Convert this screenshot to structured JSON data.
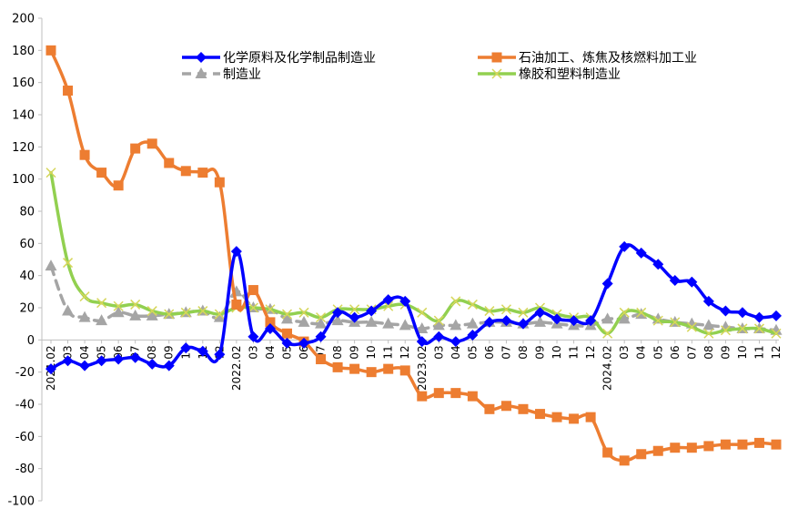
{
  "chart_data": {
    "type": "line",
    "title": "",
    "xlabel": "",
    "ylabel": "",
    "ylim": [
      -100,
      200
    ],
    "yticks": [
      200,
      180,
      160,
      140,
      120,
      100,
      80,
      60,
      40,
      20,
      0,
      -20,
      -40,
      -60,
      -80,
      -100
    ],
    "grid": false,
    "legend_position": "top",
    "categories": [
      "2021.02",
      "03",
      "04",
      "05",
      "06",
      "07",
      "08",
      "09",
      "10",
      "11",
      "12",
      "2022.02",
      "03",
      "04",
      "05",
      "06",
      "07",
      "08",
      "09",
      "10",
      "11",
      "12",
      "2023.02",
      "03",
      "04",
      "05",
      "06",
      "07",
      "08",
      "09",
      "10",
      "11",
      "12",
      "2024.02",
      "03",
      "04",
      "05",
      "06",
      "07",
      "08",
      "09",
      "10",
      "11",
      "12"
    ],
    "series": [
      {
        "name": "化学原料及化学制品制造业",
        "color": "#0000ff",
        "marker": "diamond",
        "dash": "solid",
        "values": [
          -18,
          -13,
          -16,
          -13,
          -12,
          -11,
          -15,
          -16,
          -5,
          -7,
          -9,
          55,
          2,
          7,
          -2,
          -2,
          2,
          17,
          14,
          18,
          25,
          24,
          -1,
          2,
          -1,
          3,
          11,
          12,
          10,
          17,
          13,
          12,
          12,
          35,
          58,
          54,
          47,
          37,
          36,
          24,
          18,
          17,
          14,
          15
        ]
      },
      {
        "name": "石油加工、炼焦及核燃料加工业",
        "color": "#ed7d31",
        "marker": "square",
        "dash": "solid",
        "values": [
          180,
          155,
          115,
          104,
          96,
          119,
          122,
          110,
          105,
          104,
          98,
          22,
          31,
          11,
          4,
          -1,
          -12,
          -17,
          -18,
          -20,
          -18,
          -19,
          -35,
          -33,
          -33,
          -35,
          -43,
          -41,
          -43,
          -46,
          -48,
          -49,
          -48,
          -70,
          -75,
          -71,
          -69,
          -67,
          -67,
          -66,
          -65,
          -65,
          -64,
          -65
        ]
      },
      {
        "name": "制造业",
        "color": "#a5a5a5",
        "marker": "triangle",
        "dash": "dashed",
        "values": [
          46,
          18,
          14,
          12,
          17,
          15,
          15,
          16,
          17,
          18,
          14,
          30,
          20,
          19,
          13,
          11,
          10,
          12,
          11,
          11,
          10,
          9,
          7,
          9,
          9,
          10,
          11,
          11,
          10,
          11,
          10,
          9,
          9,
          13,
          13,
          16,
          13,
          11,
          10,
          9,
          8,
          7,
          7,
          6
        ]
      },
      {
        "name": "橡胶和塑料制造业",
        "color": "#92d050",
        "marker": "x",
        "dash": "solid",
        "values": [
          104,
          48,
          27,
          23,
          21,
          22,
          18,
          16,
          17,
          18,
          16,
          20,
          20,
          19,
          16,
          17,
          14,
          19,
          19,
          19,
          21,
          22,
          17,
          12,
          24,
          22,
          18,
          19,
          17,
          20,
          16,
          14,
          14,
          4,
          17,
          17,
          12,
          11,
          8,
          4,
          6,
          7,
          7,
          4
        ]
      }
    ]
  }
}
